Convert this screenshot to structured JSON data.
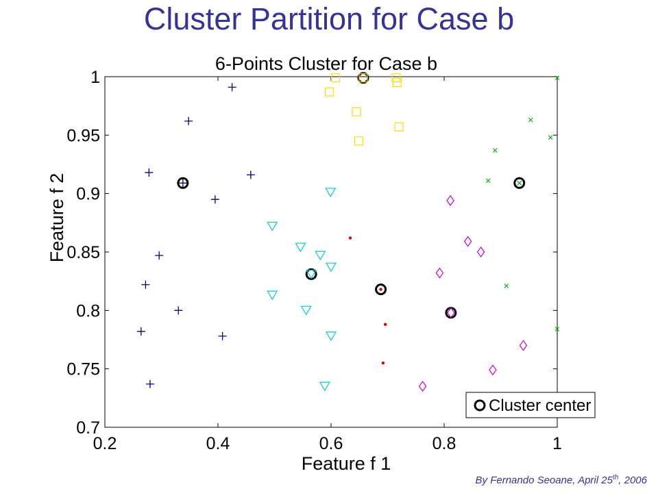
{
  "slide_title": "Cluster Partition for Case b",
  "byline": {
    "prefix": "By Fernando Seoane, April 25",
    "sup": "th",
    "suffix": ", 2006"
  },
  "chart_data": {
    "type": "scatter",
    "title": "6-Points Cluster for Case b",
    "xlabel": "Feature f 1",
    "ylabel": "Feature f 2",
    "xlim": [
      0.2,
      1.0
    ],
    "ylim": [
      0.7,
      1.0
    ],
    "xticks": [
      "0.2",
      "0.4",
      "0.6",
      "0.8",
      "1"
    ],
    "yticks": [
      "0.7",
      "0.75",
      "0.8",
      "0.85",
      "0.9",
      "0.95",
      "1"
    ],
    "grid": false,
    "legend": {
      "position": "bottom-right",
      "label": "Cluster center"
    },
    "colors": {
      "plus": "#00008b",
      "square": "#ffdd00",
      "x": "#00aa00",
      "triangle": "#00cccc",
      "diamond": "#cc00cc",
      "dot": "#dd0000",
      "center": "#000000"
    },
    "series": [
      {
        "marker": "plus",
        "points": [
          [
            0.425,
            0.991
          ],
          [
            0.348,
            0.962
          ],
          [
            0.278,
            0.918
          ],
          [
            0.458,
            0.916
          ],
          [
            0.395,
            0.895
          ],
          [
            0.296,
            0.847
          ],
          [
            0.272,
            0.822
          ],
          [
            0.33,
            0.8
          ],
          [
            0.264,
            0.782
          ],
          [
            0.408,
            0.778
          ],
          [
            0.28,
            0.737
          ]
        ]
      },
      {
        "marker": "square",
        "points": [
          [
            0.608,
            0.999
          ],
          [
            0.715,
            0.999
          ],
          [
            0.717,
            0.995
          ],
          [
            0.597,
            0.987
          ],
          [
            0.645,
            0.97
          ],
          [
            0.72,
            0.957
          ],
          [
            0.649,
            0.945
          ]
        ]
      },
      {
        "marker": "x",
        "points": [
          [
            1.0,
            0.999
          ],
          [
            0.953,
            0.963
          ],
          [
            0.988,
            0.948
          ],
          [
            0.89,
            0.937
          ],
          [
            0.878,
            0.911
          ],
          [
            0.91,
            0.821
          ],
          [
            1.0,
            0.784
          ]
        ]
      },
      {
        "marker": "triangle",
        "points": [
          [
            0.599,
            0.901
          ],
          [
            0.496,
            0.872
          ],
          [
            0.546,
            0.854
          ],
          [
            0.581,
            0.847
          ],
          [
            0.6,
            0.837
          ],
          [
            0.496,
            0.813
          ],
          [
            0.556,
            0.8
          ],
          [
            0.6,
            0.778
          ],
          [
            0.589,
            0.735
          ]
        ]
      },
      {
        "marker": "diamond",
        "points": [
          [
            0.811,
            0.894
          ],
          [
            0.842,
            0.859
          ],
          [
            0.865,
            0.85
          ],
          [
            0.792,
            0.832
          ],
          [
            0.94,
            0.77
          ],
          [
            0.886,
            0.749
          ],
          [
            0.762,
            0.735
          ]
        ]
      },
      {
        "marker": "dot",
        "points": [
          [
            0.634,
            0.862
          ],
          [
            0.696,
            0.788
          ],
          [
            0.692,
            0.755
          ]
        ]
      }
    ],
    "centers": [
      {
        "marker": "plus",
        "x": 0.338,
        "y": 0.909
      },
      {
        "marker": "square",
        "x": 0.657,
        "y": 0.999
      },
      {
        "marker": "x",
        "x": 0.933,
        "y": 0.909
      },
      {
        "marker": "triangle",
        "x": 0.565,
        "y": 0.831
      },
      {
        "marker": "dot",
        "x": 0.688,
        "y": 0.818
      },
      {
        "marker": "diamond",
        "x": 0.812,
        "y": 0.798
      }
    ]
  }
}
